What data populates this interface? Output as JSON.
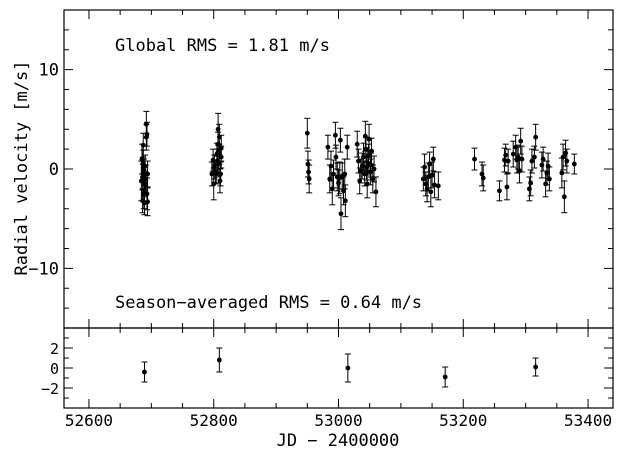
{
  "chart_data": [
    {
      "type": "scatter",
      "panel": "main",
      "ylabel": "Radial velocity [m/s]",
      "xlim": [
        52560,
        53440
      ],
      "ylim": [
        -16,
        16
      ],
      "yticks": [
        -10,
        0,
        10
      ],
      "yticklabels": [
        "−10",
        "0",
        "10"
      ],
      "annotations": {
        "global_rms": "Global RMS = 1.81 m/s",
        "season_rms": "Season−averaged RMS = 0.64 m/s"
      },
      "series": [
        {
          "points": [
            [
              52684,
              -1.2,
              2.0
            ],
            [
              52685,
              1.0,
              1.5
            ],
            [
              52686,
              -3.2,
              1.2
            ],
            [
              52686,
              -0.8,
              1.3
            ],
            [
              52687,
              0.5,
              1.4
            ],
            [
              52687,
              2.4,
              1.2
            ],
            [
              52688,
              -2.5,
              1.5
            ],
            [
              52688,
              -0.2,
              1.2
            ],
            [
              52689,
              -1.5,
              1.3
            ],
            [
              52689,
              -3.4,
              1.2
            ],
            [
              52690,
              0.3,
              1.1
            ],
            [
              52691,
              -1.0,
              1.4
            ],
            [
              52692,
              3.2,
              1.3
            ],
            [
              52692,
              4.5,
              1.3
            ],
            [
              52693,
              -2.5,
              1.6
            ],
            [
              52693,
              3.5,
              1.2
            ],
            [
              52694,
              -3.3,
              1.4
            ],
            [
              52694,
              -0.5,
              1.3
            ],
            [
              52797,
              -0.5,
              1.2
            ],
            [
              52799,
              0.9,
              1.1
            ],
            [
              52800,
              -1.5,
              1.6
            ],
            [
              52801,
              0.2,
              1.2
            ],
            [
              52803,
              -0.3,
              1.1
            ],
            [
              52804,
              -0.5,
              1.0
            ],
            [
              52805,
              1.5,
              1.1
            ],
            [
              52806,
              0.8,
              1.2
            ],
            [
              52807,
              2.5,
              1.2
            ],
            [
              52807,
              4.0,
              1.6
            ],
            [
              52808,
              0.5,
              1.3
            ],
            [
              52809,
              1.5,
              1.0
            ],
            [
              52809,
              3.2,
              1.3
            ],
            [
              52810,
              -1.2,
              1.2
            ],
            [
              52811,
              -0.5,
              1.2
            ],
            [
              52812,
              2.1,
              1.3
            ],
            [
              52812,
              1.2,
              1.1
            ],
            [
              52950,
              3.6,
              1.5
            ],
            [
              52951,
              0.5,
              1.3
            ],
            [
              52952,
              -0.3,
              1.2
            ],
            [
              52953,
              -1.0,
              1.4
            ],
            [
              52983,
              2.2,
              1.2
            ],
            [
              52986,
              -1.0,
              1.4
            ],
            [
              52988,
              0.3,
              1.5
            ],
            [
              52990,
              -2.0,
              1.6
            ],
            [
              52992,
              -0.5,
              1.4
            ],
            [
              52995,
              3.4,
              1.3
            ],
            [
              52996,
              1.2,
              1.2
            ],
            [
              52998,
              -0.8,
              1.4
            ],
            [
              53000,
              -1.4,
              1.3
            ],
            [
              53002,
              -0.9,
              1.6
            ],
            [
              53003,
              2.9,
              1.2
            ],
            [
              53004,
              -4.5,
              1.6
            ],
            [
              53006,
              -0.7,
              1.3
            ],
            [
              53008,
              -2.2,
              1.4
            ],
            [
              53010,
              -0.5,
              1.5
            ],
            [
              53011,
              -3.2,
              1.6
            ],
            [
              53014,
              2.2,
              1.2
            ],
            [
              53030,
              2.5,
              1.3
            ],
            [
              53032,
              0.8,
              1.2
            ],
            [
              53034,
              -1.2,
              1.3
            ],
            [
              53036,
              -0.2,
              1.2
            ],
            [
              53038,
              0.3,
              1.3
            ],
            [
              53040,
              1.2,
              1.4
            ],
            [
              53042,
              -0.5,
              1.2
            ],
            [
              53043,
              3.3,
              1.5
            ],
            [
              53044,
              2.0,
              1.2
            ],
            [
              53045,
              0.2,
              1.3
            ],
            [
              53046,
              -1.5,
              1.4
            ],
            [
              53047,
              0.6,
              1.2
            ],
            [
              53048,
              1.3,
              1.2
            ],
            [
              53049,
              3.0,
              1.5
            ],
            [
              53051,
              -0.3,
              1.3
            ],
            [
              53052,
              0.4,
              1.2
            ],
            [
              53053,
              1.8,
              1.3
            ],
            [
              53055,
              -1.0,
              1.4
            ],
            [
              53057,
              0.0,
              1.3
            ],
            [
              53060,
              -2.3,
              1.5
            ],
            [
              53136,
              -1.0,
              1.2
            ],
            [
              53138,
              0.2,
              1.3
            ],
            [
              53140,
              -1.5,
              1.2
            ],
            [
              53142,
              -2.0,
              1.3
            ],
            [
              53144,
              -0.8,
              1.4
            ],
            [
              53146,
              0.5,
              1.2
            ],
            [
              53148,
              -2.3,
              1.5
            ],
            [
              53150,
              -0.6,
              1.3
            ],
            [
              53152,
              1.0,
              1.2
            ],
            [
              53154,
              -1.6,
              1.3
            ],
            [
              53160,
              -1.7,
              1.4
            ],
            [
              53218,
              1.0,
              1.1
            ],
            [
              53230,
              -0.5,
              1.2
            ],
            [
              53232,
              -0.9,
              1.3
            ],
            [
              53258,
              -2.2,
              1.0
            ],
            [
              53266,
              0.9,
              1.2
            ],
            [
              53268,
              1.4,
              1.1
            ],
            [
              53270,
              -1.8,
              1.3
            ],
            [
              53272,
              0.8,
              1.2
            ],
            [
              53280,
              1.5,
              1.3
            ],
            [
              53284,
              2.2,
              1.2
            ],
            [
              53286,
              0.9,
              1.3
            ],
            [
              53288,
              1.2,
              1.2
            ],
            [
              53290,
              -0.2,
              1.2
            ],
            [
              53292,
              2.8,
              1.3
            ],
            [
              53294,
              1.0,
              1.3
            ],
            [
              53306,
              -2.0,
              1.2
            ],
            [
              53308,
              -1.4,
              1.3
            ],
            [
              53310,
              0.8,
              1.2
            ],
            [
              53314,
              1.2,
              1.1
            ],
            [
              53316,
              3.2,
              1.3
            ],
            [
              53326,
              0.4,
              1.3
            ],
            [
              53328,
              1.0,
              1.2
            ],
            [
              53332,
              -1.5,
              1.3
            ],
            [
              53334,
              -0.4,
              1.2
            ],
            [
              53336,
              0.3,
              1.3
            ],
            [
              53338,
              -1.0,
              1.2
            ],
            [
              53358,
              -0.4,
              1.5
            ],
            [
              53360,
              1.2,
              1.3
            ],
            [
              53362,
              -2.8,
              1.6
            ],
            [
              53364,
              1.6,
              1.3
            ],
            [
              53366,
              0.8,
              1.2
            ],
            [
              53378,
              0.5,
              1.0
            ]
          ]
        }
      ]
    },
    {
      "type": "scatter",
      "panel": "residual",
      "xlabel": "JD − 2400000",
      "xlim": [
        52560,
        53440
      ],
      "ylim": [
        -4,
        4
      ],
      "xticks": [
        52600,
        52800,
        53000,
        53200,
        53400
      ],
      "xticklabels": [
        "52600",
        "52800",
        "53000",
        "53200",
        "53400"
      ],
      "yticks": [
        -2,
        0,
        2
      ],
      "yticklabels": [
        "−2",
        "0",
        "2"
      ],
      "series": [
        {
          "points": [
            [
              52689,
              -0.4,
              1.0
            ],
            [
              52809,
              0.8,
              1.2
            ],
            [
              53015,
              0.0,
              1.4
            ],
            [
              53171,
              -0.9,
              1.0
            ],
            [
              53316,
              0.1,
              0.9
            ]
          ]
        }
      ]
    }
  ]
}
